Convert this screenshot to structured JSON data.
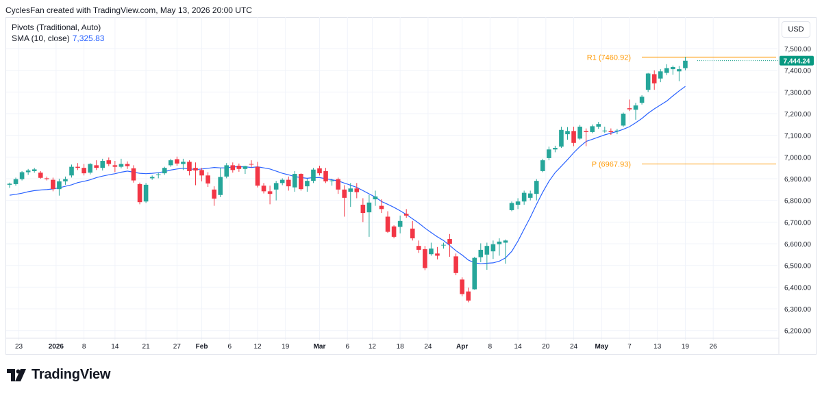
{
  "header": {
    "credit": "CyclesFan created with TradingView.com, May 13, 2026 20:00 UTC"
  },
  "indicators": {
    "pivots_label": "Pivots (Traditional, Auto)",
    "sma_label": "SMA (10, close)",
    "sma_value": "7,325.83"
  },
  "currency": "USD",
  "brand": {
    "name": "TradingView"
  },
  "colors": {
    "up": "#26a69a",
    "down": "#f23645",
    "sma": "#2962ff",
    "pivot": "#ff9800",
    "grid": "#f0f3fa",
    "price_label_bg": "#089981"
  },
  "chart_data": {
    "type": "candlestick",
    "ylim": [
      6150,
      7570
    ],
    "y_ticks": [
      6200,
      6300,
      6400,
      6500,
      6600,
      6700,
      6800,
      6900,
      7000,
      7100,
      7200,
      7300,
      7400,
      7500
    ],
    "y_tick_labels": [
      "6,200.00",
      "6,300.00",
      "6,400.00",
      "6,500.00",
      "6,600.00",
      "6,700.00",
      "6,800.00",
      "6,900.00",
      "7,000.00",
      "7,100.00",
      "7,200.00",
      "7,300.00",
      "7,400.00",
      "7,500.00"
    ],
    "x_tick_labels": [
      "23",
      "2026",
      "8",
      "14",
      "21",
      "27",
      "Feb",
      "6",
      "12",
      "19",
      "Mar",
      "6",
      "12",
      "18",
      "24",
      "Apr",
      "8",
      "14",
      "20",
      "24",
      "May",
      "7",
      "13",
      "19",
      "26"
    ],
    "x_tick_index": [
      1.5,
      7.5,
      12,
      17,
      22,
      27,
      31,
      35.5,
      40,
      44.5,
      50,
      54.5,
      58.5,
      63,
      67.5,
      73,
      77.5,
      82,
      86.5,
      91,
      95.5,
      100,
      104.5,
      109,
      113.5
    ],
    "x_tick_bold": [
      "2026",
      "Feb",
      "Mar",
      "Apr",
      "May"
    ],
    "pivots": [
      {
        "label": "R1 (7460.92)",
        "value": 7460.92
      },
      {
        "label": "P (6967.93)",
        "value": 6967.93
      }
    ],
    "last_price": {
      "label": "7,444.24",
      "value": 7444.24
    },
    "candles": [
      [
        6872,
        6882,
        6858,
        6877
      ],
      [
        6875,
        6905,
        6868,
        6898
      ],
      [
        6898,
        6935,
        6892,
        6930
      ],
      [
        6930,
        6945,
        6918,
        6938
      ],
      [
        6935,
        6950,
        6928,
        6943
      ],
      [
        6928,
        6935,
        6900,
        6904
      ],
      [
        6902,
        6910,
        6892,
        6898
      ],
      [
        6895,
        6905,
        6842,
        6852
      ],
      [
        6852,
        6900,
        6822,
        6888
      ],
      [
        6888,
        6910,
        6872,
        6898
      ],
      [
        6915,
        6965,
        6905,
        6955
      ],
      [
        6955,
        6972,
        6940,
        6950
      ],
      [
        6950,
        6968,
        6915,
        6925
      ],
      [
        6928,
        6972,
        6920,
        6968
      ],
      [
        6962,
        6985,
        6940,
        6950
      ],
      [
        6950,
        6992,
        6938,
        6982
      ],
      [
        6985,
        6998,
        6958,
        6968
      ],
      [
        6962,
        6982,
        6930,
        6955
      ],
      [
        6955,
        6992,
        6948,
        6968
      ],
      [
        6968,
        6980,
        6945,
        6958
      ],
      [
        6948,
        6962,
        6882,
        6892
      ],
      [
        6875,
        6882,
        6782,
        6792
      ],
      [
        6795,
        6880,
        6788,
        6872
      ],
      [
        6902,
        6915,
        6895,
        6908
      ],
      [
        6918,
        6928,
        6902,
        6920
      ],
      [
        6925,
        6955,
        6918,
        6950
      ],
      [
        6962,
        6992,
        6955,
        6985
      ],
      [
        6990,
        7002,
        6960,
        6970
      ],
      [
        6968,
        6992,
        6940,
        6978
      ],
      [
        6978,
        6985,
        6915,
        6935
      ],
      [
        6950,
        6975,
        6870,
        6938
      ],
      [
        6940,
        6950,
        6888,
        6915
      ],
      [
        6915,
        6930,
        6862,
        6878
      ],
      [
        6850,
        6865,
        6775,
        6808
      ],
      [
        6825,
        6950,
        6815,
        6908
      ],
      [
        6910,
        6972,
        6902,
        6962
      ],
      [
        6962,
        6975,
        6928,
        6940
      ],
      [
        6960,
        6970,
        6932,
        6945
      ],
      [
        6945,
        6960,
        6922,
        6958
      ],
      [
        6968,
        6985,
        6952,
        6965
      ],
      [
        6955,
        6978,
        6860,
        6868
      ],
      [
        6868,
        6880,
        6832,
        6842
      ],
      [
        6842,
        6868,
        6782,
        6830
      ],
      [
        6850,
        6890,
        6800,
        6880
      ],
      [
        6880,
        6902,
        6870,
        6895
      ],
      [
        6895,
        6910,
        6845,
        6865
      ],
      [
        6860,
        6935,
        6840,
        6922
      ],
      [
        6922,
        6925,
        6845,
        6852
      ],
      [
        6865,
        6900,
        6840,
        6890
      ],
      [
        6890,
        6950,
        6880,
        6942
      ],
      [
        6948,
        6960,
        6915,
        6925
      ],
      [
        6935,
        6950,
        6880,
        6888
      ],
      [
        6890,
        6900,
        6868,
        6892
      ],
      [
        6898,
        6905,
        6830,
        6850
      ],
      [
        6850,
        6870,
        6725,
        6812
      ],
      [
        6840,
        6880,
        6770,
        6855
      ],
      [
        6855,
        6880,
        6810,
        6838
      ],
      [
        6780,
        6810,
        6700,
        6742
      ],
      [
        6745,
        6825,
        6632,
        6790
      ],
      [
        6805,
        6845,
        6775,
        6818
      ],
      [
        6775,
        6805,
        6742,
        6760
      ],
      [
        6725,
        6750,
        6650,
        6655
      ],
      [
        6680,
        6685,
        6625,
        6632
      ],
      [
        6678,
        6730,
        6648,
        6705
      ],
      [
        6738,
        6760,
        6720,
        6730
      ],
      [
        6670,
        6705,
        6615,
        6625
      ],
      [
        6590,
        6615,
        6558,
        6572
      ],
      [
        6575,
        6590,
        6478,
        6488
      ],
      [
        6552,
        6605,
        6545,
        6578
      ],
      [
        6555,
        6585,
        6528,
        6545
      ],
      [
        6592,
        6605,
        6578,
        6595
      ],
      [
        6622,
        6645,
        6540,
        6600
      ],
      [
        6542,
        6555,
        6455,
        6465
      ],
      [
        6435,
        6445,
        6358,
        6368
      ],
      [
        6380,
        6398,
        6330,
        6338
      ],
      [
        6390,
        6540,
        6388,
        6535
      ],
      [
        6538,
        6602,
        6515,
        6572
      ],
      [
        6550,
        6605,
        6480,
        6590
      ],
      [
        6565,
        6615,
        6530,
        6598
      ],
      [
        6598,
        6625,
        6545,
        6610
      ],
      [
        6605,
        6620,
        6508,
        6615
      ],
      [
        6755,
        6795,
        6750,
        6788
      ],
      [
        6780,
        6810,
        6760,
        6795
      ],
      [
        6795,
        6845,
        6780,
        6835
      ],
      [
        6812,
        6845,
        6800,
        6832
      ],
      [
        6830,
        6898,
        6800,
        6890
      ],
      [
        6935,
        6992,
        6930,
        6985
      ],
      [
        6995,
        7048,
        6985,
        7035
      ],
      [
        7035,
        7052,
        7022,
        7042
      ],
      [
        7048,
        7140,
        7042,
        7125
      ],
      [
        7105,
        7138,
        7080,
        7120
      ],
      [
        7120,
        7140,
        7050,
        7065
      ],
      [
        7085,
        7148,
        7080,
        7140
      ],
      [
        7120,
        7132,
        7050,
        7115
      ],
      [
        7115,
        7150,
        7110,
        7142
      ],
      [
        7140,
        7162,
        7130,
        7152
      ],
      [
        7120,
        7140,
        7112,
        7122
      ],
      [
        7120,
        7132,
        7102,
        7115
      ],
      [
        7120,
        7130,
        7105,
        7122
      ],
      [
        7145,
        7205,
        7140,
        7200
      ],
      [
        7225,
        7265,
        7212,
        7220
      ],
      [
        7218,
        7250,
        7172,
        7238
      ],
      [
        7250,
        7285,
        7242,
        7278
      ],
      [
        7310,
        7388,
        7300,
        7385
      ],
      [
        7382,
        7400,
        7310,
        7340
      ],
      [
        7362,
        7405,
        7345,
        7395
      ],
      [
        7388,
        7428,
        7378,
        7410
      ],
      [
        7405,
        7422,
        7380,
        7415
      ],
      [
        7395,
        7420,
        7350,
        7405
      ],
      [
        7410,
        7462,
        7400,
        7444
      ]
    ],
    "sma": [
      6824,
      6828,
      6833,
      6840,
      6845,
      6848,
      6850,
      6853,
      6858,
      6865,
      6872,
      6882,
      6888,
      6895,
      6905,
      6912,
      6918,
      6923,
      6930,
      6935,
      6930,
      6925,
      6923,
      6925,
      6928,
      6933,
      6940,
      6945,
      6948,
      6946,
      6942,
      6945,
      6948,
      6952,
      6950,
      6950,
      6955,
      6955,
      6955,
      6952,
      6955,
      6950,
      6945,
      6935,
      6925,
      6918,
      6910,
      6905,
      6902,
      6905,
      6905,
      6900,
      6895,
      6890,
      6880,
      6870,
      6860,
      6845,
      6830,
      6815,
      6795,
      6782,
      6768,
      6752,
      6735,
      6715,
      6695,
      6672,
      6652,
      6632,
      6615,
      6592,
      6568,
      6548,
      6525,
      6512,
      6508,
      6510,
      6512,
      6520,
      6535,
      6565,
      6612,
      6668,
      6722,
      6782,
      6838,
      6888,
      6928,
      6958,
      6988,
      7020,
      7048,
      7072,
      7082,
      7092,
      7102,
      7110,
      7118,
      7128,
      7140,
      7158,
      7178,
      7202,
      7222,
      7240,
      7258,
      7282,
      7305,
      7325.83
    ]
  }
}
